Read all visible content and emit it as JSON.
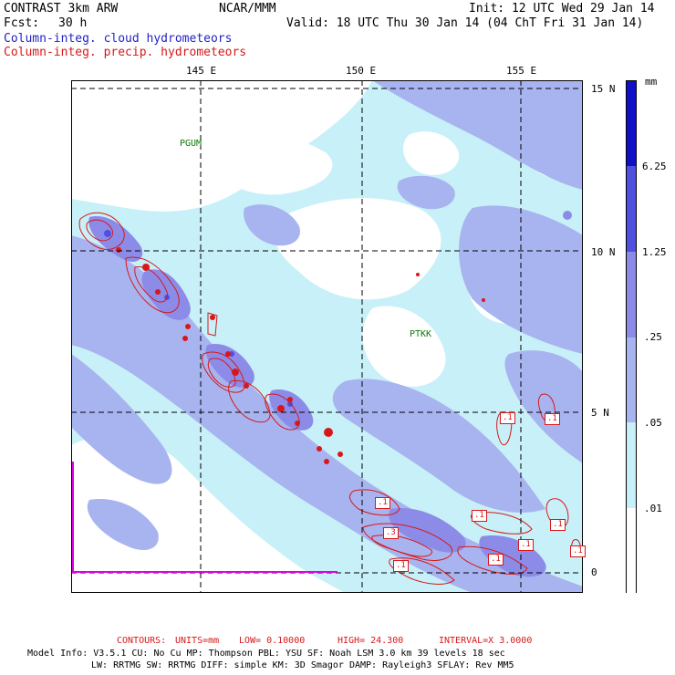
{
  "header": {
    "model": "CONTRAST  3km ARW",
    "org": "NCAR/MMM",
    "init": "Init: 12 UTC Wed 29 Jan 14",
    "fcst_label": "Fcst:",
    "fcst_value": "30 h",
    "valid": "Valid: 18 UTC Thu 30 Jan 14 (04 ChT Fri 31 Jan 14)",
    "field1": "Column-integ. cloud hydrometeors",
    "field2": "Column-integ. precip. hydrometeors"
  },
  "map": {
    "lon_labels": [
      "145 E",
      "150 E",
      "155 E"
    ],
    "lat_labels": [
      "15 N",
      "10 N",
      "5 N",
      "0"
    ],
    "stations": [
      "PGUM",
      "PTKK"
    ],
    "contour_labels": [
      ".1",
      ".1",
      ".1",
      ".1",
      ".1",
      ".1",
      ".1",
      ".3",
      ".1",
      ".1"
    ],
    "colors": {
      "shade_light": "#c8f0f8",
      "shade_mid": "#a8b4f0",
      "shade_dark": "#8c8ce8",
      "shade_deep": "#5050e0",
      "shade_max": "#1010c8",
      "contour": "#d81818",
      "boundary": "#e000e0"
    }
  },
  "colorbar": {
    "unit": "mm",
    "levels": [
      ".01",
      ".05",
      ".25",
      "1.25",
      "6.25"
    ],
    "colors": [
      "#ffffff",
      "#c8f0f8",
      "#a8b4f0",
      "#8c8ce8",
      "#5050e0",
      "#1010c8"
    ]
  },
  "footer": {
    "contours_label": "CONTOURS:",
    "units": "UNITS=mm",
    "low": "LOW= 0.10000",
    "high": "HIGH= 24.300",
    "interval": "INTERVAL=X 3.0000",
    "model_info": "Model Info: V3.5.1    CU: No Cu    MP: Thompson    PBL: YSU    SF: Noah LSM    3.0 km   39 levels    18 sec",
    "model_info2": "LW: RRTMG    SW: RRTMG   DIFF: simple KM: 3D Smagor DAMP: Rayleigh3   SFLAY: Rev MM5"
  }
}
